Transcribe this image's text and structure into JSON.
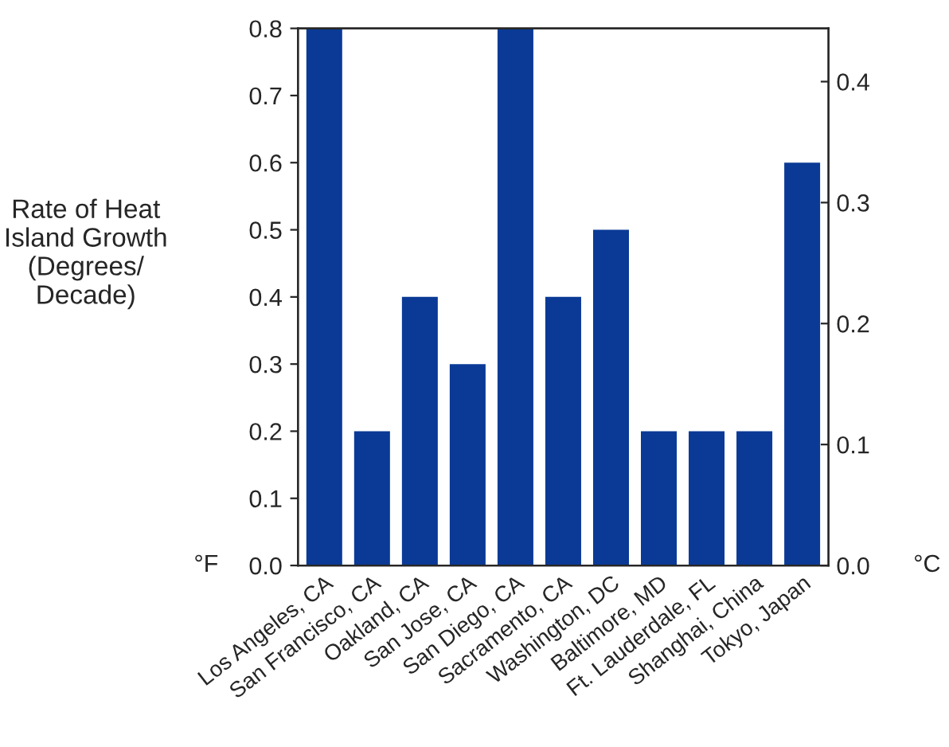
{
  "chart_data": {
    "type": "bar",
    "ylabel": "Rate of Heat\nIsland Growth\n(Degrees/\nDecade)",
    "categories": [
      "Los Angeles, CA",
      "San Francisco, CA",
      "Oakland, CA",
      "San Jose, CA",
      "San Diego, CA",
      "Sacramento, CA",
      "Washington, DC",
      "Baltimore, MD",
      "Ft. Lauderdale, FL",
      "Shanghai, China",
      "Tokyo, Japan"
    ],
    "values": [
      0.8,
      0.2,
      0.4,
      0.3,
      0.8,
      0.4,
      0.5,
      0.2,
      0.2,
      0.2,
      0.6
    ],
    "color": "#0a3a96",
    "ylim": [
      0,
      0.8
    ],
    "yticks": [
      "0.0",
      0.1,
      0.2,
      0.3,
      0.4,
      0.5,
      0.6,
      0.7,
      0.8
    ],
    "y2lim": [
      0,
      0.444
    ],
    "y2ticks": [
      "0.0",
      0.1,
      0.2,
      0.3,
      0.4
    ],
    "annotations": [
      "°F",
      "°C"
    ],
    "grid": false,
    "legend": false
  }
}
